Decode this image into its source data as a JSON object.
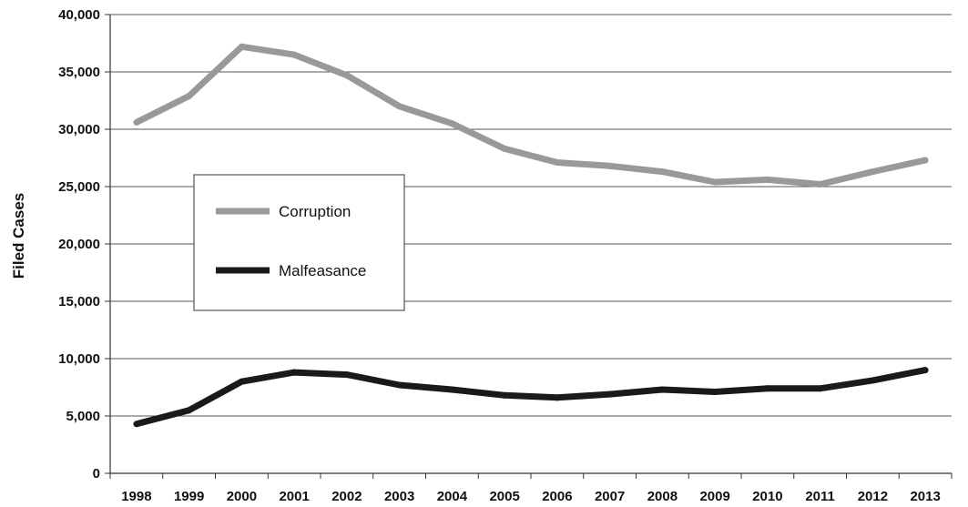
{
  "chart_data": {
    "type": "line",
    "title": "",
    "xlabel": "",
    "ylabel": "Filed Cases",
    "x": [
      "1998",
      "1999",
      "2000",
      "2001",
      "2002",
      "2003",
      "2004",
      "2005",
      "2006",
      "2007",
      "2008",
      "2009",
      "2010",
      "2011",
      "2012",
      "2013"
    ],
    "y_ticks": [
      "0",
      "5,000",
      "10,000",
      "15,000",
      "20,000",
      "25,000",
      "30,000",
      "35,000",
      "40,000"
    ],
    "ylim": [
      0,
      40000
    ],
    "grid": true,
    "legend_position": "left-center",
    "series": [
      {
        "name": "Corruption",
        "color": "#999999",
        "values": [
          30600,
          32900,
          37200,
          36500,
          34700,
          32000,
          30500,
          28300,
          27100,
          26800,
          26300,
          25400,
          25600,
          25200,
          26300,
          27300
        ]
      },
      {
        "name": "Malfeasance",
        "color": "#1a1a1a",
        "values": [
          4300,
          5500,
          8000,
          8800,
          8600,
          7700,
          7300,
          6800,
          6600,
          6900,
          7300,
          7100,
          7400,
          7400,
          8100,
          9000
        ]
      }
    ]
  }
}
